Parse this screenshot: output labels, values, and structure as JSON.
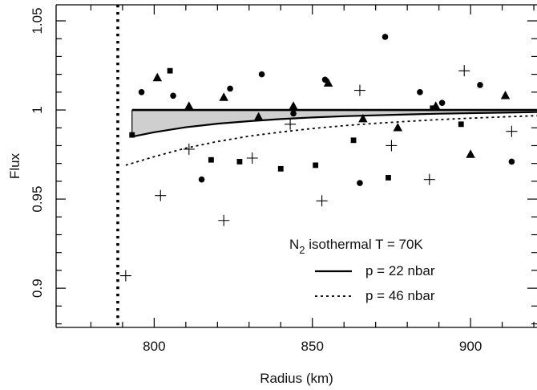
{
  "chart_data": {
    "type": "scatter",
    "xlabel": "Radius (km)",
    "ylabel": "Flux",
    "xlim": [
      769,
      921
    ],
    "ylim": [
      0.878,
      1.059
    ],
    "x_ticks": [
      800,
      850,
      900
    ],
    "x_tick_labels": [
      "800",
      "850",
      "900"
    ],
    "y_ticks": [
      0.9,
      0.95,
      1,
      1.05
    ],
    "y_tick_labels": [
      "0.9",
      "0.95",
      "1",
      "1.05"
    ],
    "vertical_marker_x": 788.5,
    "legend": {
      "title_main": "N",
      "title_sub": "2",
      "title_rest": " isothermal T = 70K",
      "entries": [
        {
          "label": "p = 22 nbar",
          "style": "solid"
        },
        {
          "label": "p = 46 nbar",
          "style": "dotted"
        }
      ]
    },
    "model_curves": [
      {
        "name": "p = 22 nbar",
        "style": "solid",
        "x": [
          793,
          800,
          810,
          820,
          830,
          840,
          850,
          860,
          870,
          880,
          890,
          900,
          910,
          921
        ],
        "y": [
          0.985,
          0.9875,
          0.9903,
          0.9923,
          0.9937,
          0.9949,
          0.9958,
          0.9965,
          0.997,
          0.9975,
          0.9979,
          0.9982,
          0.9985,
          0.9988
        ]
      },
      {
        "name": "p = 46 nbar",
        "style": "dotted",
        "x": [
          791,
          800,
          810,
          820,
          830,
          840,
          850,
          860,
          870,
          880,
          890,
          900,
          910,
          921
        ],
        "y": [
          0.969,
          0.9738,
          0.9786,
          0.9823,
          0.9853,
          0.9876,
          0.9896,
          0.9912,
          0.9925,
          0.9936,
          0.9946,
          0.9954,
          0.9961,
          0.9968
        ]
      }
    ],
    "reference_line_y": 1.0,
    "series": [
      {
        "marker": "circle",
        "x": [
          796,
          806,
          815,
          824,
          834,
          844,
          854,
          865,
          873,
          884,
          891,
          903,
          913
        ],
        "y": [
          1.01,
          1.008,
          0.961,
          1.012,
          1.02,
          0.998,
          1.017,
          0.959,
          1.041,
          1.01,
          1.004,
          1.014,
          0.971
        ]
      },
      {
        "marker": "square",
        "x": [
          793,
          805,
          818,
          827,
          840,
          851,
          863,
          874,
          888,
          897
        ],
        "y": [
          0.986,
          1.022,
          0.972,
          0.971,
          0.967,
          0.969,
          0.983,
          0.962,
          1.001,
          0.992
        ]
      },
      {
        "marker": "triangle",
        "x": [
          801,
          811,
          822,
          833,
          844,
          855,
          866,
          877,
          889,
          900,
          911
        ],
        "y": [
          1.018,
          1.002,
          1.007,
          0.996,
          1.002,
          1.015,
          0.995,
          0.99,
          1.002,
          0.975,
          1.008
        ]
      },
      {
        "marker": "plus",
        "x": [
          791,
          802,
          811,
          822,
          831,
          843,
          853,
          865,
          875,
          887,
          898,
          913
        ],
        "y": [
          0.907,
          0.952,
          0.978,
          0.938,
          0.973,
          0.992,
          0.949,
          1.011,
          0.98,
          0.961,
          1.022,
          0.988
        ]
      }
    ]
  }
}
